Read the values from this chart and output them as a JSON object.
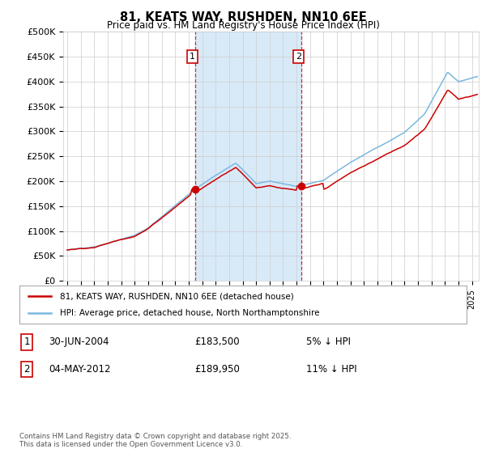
{
  "title": "81, KEATS WAY, RUSHDEN, NN10 6EE",
  "subtitle": "Price paid vs. HM Land Registry's House Price Index (HPI)",
  "ylabel_ticks": [
    "£0",
    "£50K",
    "£100K",
    "£150K",
    "£200K",
    "£250K",
    "£300K",
    "£350K",
    "£400K",
    "£450K",
    "£500K"
  ],
  "ytick_values": [
    0,
    50000,
    100000,
    150000,
    200000,
    250000,
    300000,
    350000,
    400000,
    450000,
    500000
  ],
  "ylim": [
    0,
    500000
  ],
  "xlim_start": 1994.7,
  "xlim_end": 2025.5,
  "purchase1_x": 2004.49,
  "purchase1_y": 183500,
  "purchase1_label": "1",
  "purchase1_date": "30-JUN-2004",
  "purchase1_price": "£183,500",
  "purchase1_note": "5% ↓ HPI",
  "purchase2_x": 2012.34,
  "purchase2_y": 189950,
  "purchase2_label": "2",
  "purchase2_date": "04-MAY-2012",
  "purchase2_price": "£189,950",
  "purchase2_note": "11% ↓ HPI",
  "hpi_color": "#7ab8e0",
  "price_color": "#cc0000",
  "span_color": "#d8eaf8",
  "grid_color": "#cccccc",
  "background_color": "#ffffff",
  "legend_label_price": "81, KEATS WAY, RUSHDEN, NN10 6EE (detached house)",
  "legend_label_hpi": "HPI: Average price, detached house, North Northamptonshire",
  "footnote": "Contains HM Land Registry data © Crown copyright and database right 2025.\nThis data is licensed under the Open Government Licence v3.0."
}
